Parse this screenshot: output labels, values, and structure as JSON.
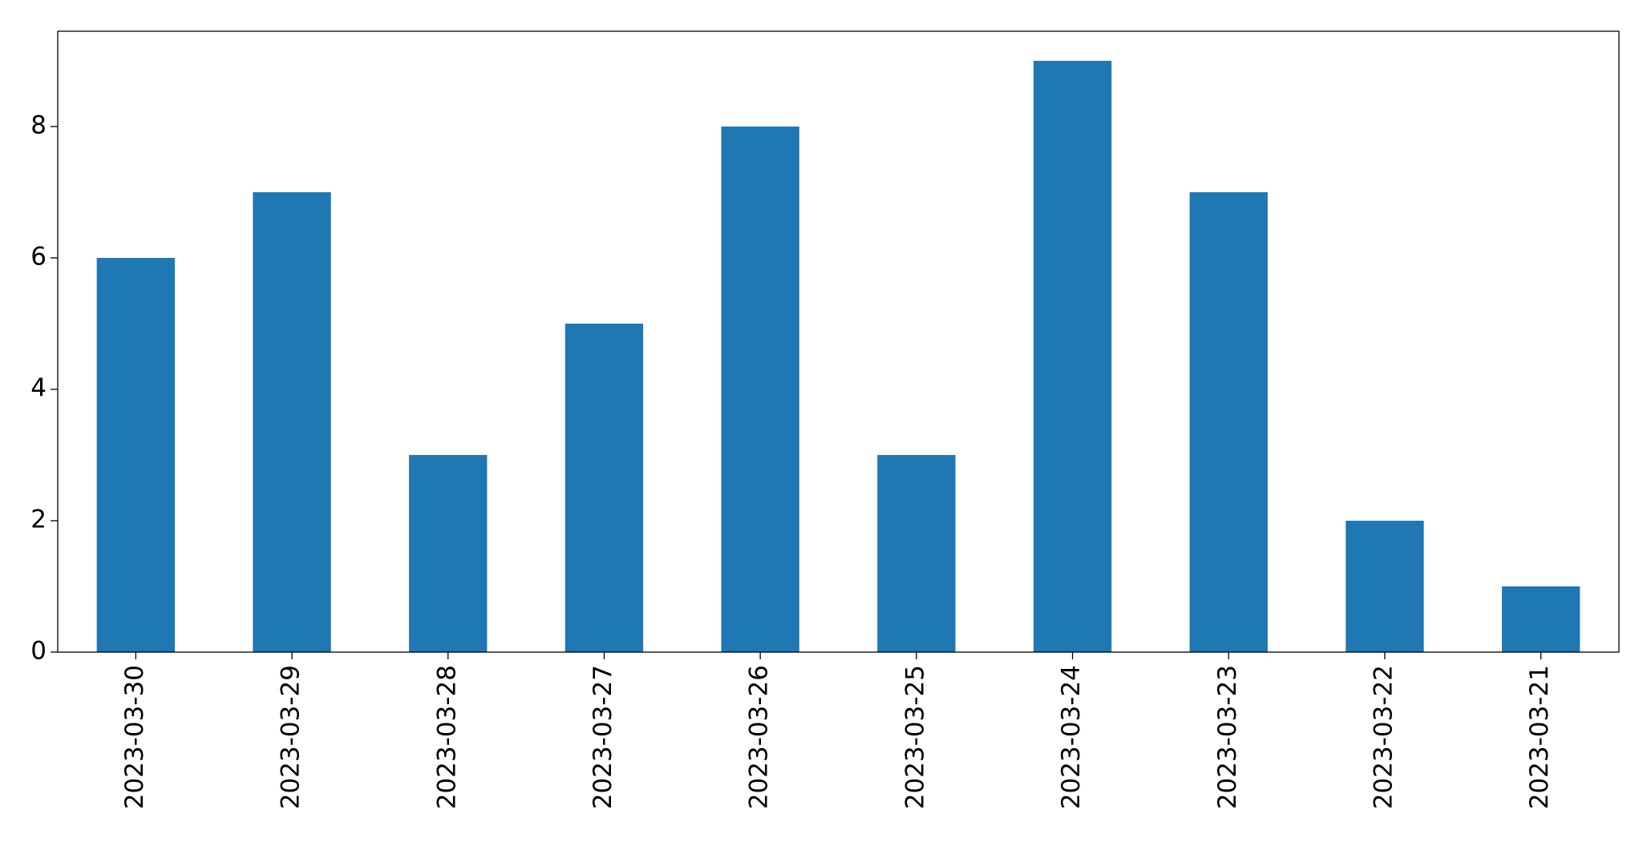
{
  "chart_data": {
    "type": "bar",
    "categories": [
      "2023-03-30",
      "2023-03-29",
      "2023-03-28",
      "2023-03-27",
      "2023-03-26",
      "2023-03-25",
      "2023-03-24",
      "2023-03-23",
      "2023-03-22",
      "2023-03-21"
    ],
    "values": [
      6,
      7,
      3,
      5,
      8,
      3,
      9,
      7,
      2,
      1
    ],
    "color": "#1f77b4",
    "ylim": [
      0,
      9.45
    ],
    "yticks": [
      0,
      2,
      4,
      6,
      8
    ],
    "grid": false
  }
}
